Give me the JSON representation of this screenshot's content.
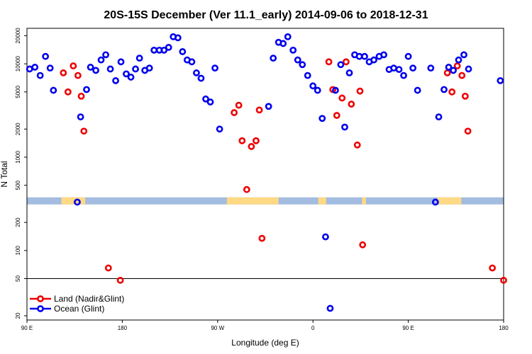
{
  "chart_data": {
    "type": "scatter",
    "title": "20S-15S December (Ver 11.1_early)   2014-09-06 to 2018-12-31",
    "xlabel": "Longitude (deg E)",
    "ylabel": "N Total",
    "xlim": [
      90,
      450
    ],
    "ylim": [
      18,
      24000
    ],
    "y_scale": "log",
    "x_ticks": [
      {
        "value": 90,
        "label": "90 E"
      },
      {
        "value": 162,
        "label": "180"
      },
      {
        "value": 234,
        "label": "90 W"
      },
      {
        "value": 306,
        "label": "0"
      },
      {
        "value": 378,
        "label": "90 E"
      },
      {
        "value": 450,
        "label": "180"
      }
    ],
    "y_ticks": [
      {
        "value": 20,
        "label": "20"
      },
      {
        "value": 50,
        "label": "50"
      },
      {
        "value": 100,
        "label": "100"
      },
      {
        "value": 200,
        "label": "200"
      },
      {
        "value": 500,
        "label": "500"
      },
      {
        "value": 1000,
        "label": "1000"
      },
      {
        "value": 2000,
        "label": "2000"
      },
      {
        "value": 5000,
        "label": "5000"
      },
      {
        "value": 10000,
        "label": "10000"
      },
      {
        "value": 20000,
        "label": "20000"
      }
    ],
    "reference_line_y": 50,
    "land_mask": {
      "y": 340,
      "ocean_color": "#a3bce0",
      "land_color": "#ffd983",
      "land_ranges": [
        [
          116,
          134
        ],
        [
          241,
          280
        ],
        [
          310,
          316
        ],
        [
          343,
          346
        ],
        [
          400,
          418
        ]
      ]
    },
    "legend": {
      "position": "bottom-left"
    },
    "series": [
      {
        "name": "Land (Nadir&Glint)",
        "color": "#ee0000",
        "points": [
          [
            117.5,
            8000
          ],
          [
            121,
            5000
          ],
          [
            125,
            9500
          ],
          [
            128.5,
            7500
          ],
          [
            131,
            4500
          ],
          [
            133,
            1900
          ],
          [
            151.5,
            65
          ],
          [
            160.5,
            48
          ],
          [
            246.5,
            3000
          ],
          [
            250,
            3600
          ],
          [
            252.5,
            1500
          ],
          [
            256,
            450
          ],
          [
            259.5,
            1300
          ],
          [
            263,
            1500
          ],
          [
            265.5,
            3200
          ],
          [
            267.5,
            135
          ],
          [
            318,
            10500
          ],
          [
            321,
            5300
          ],
          [
            324,
            2800
          ],
          [
            328,
            4300
          ],
          [
            331,
            10500
          ],
          [
            335,
            3700
          ],
          [
            339.5,
            1350
          ],
          [
            341.5,
            5100
          ],
          [
            343.5,
            115
          ],
          [
            407.5,
            8000
          ],
          [
            411,
            5000
          ],
          [
            415,
            9500
          ],
          [
            418.5,
            7500
          ],
          [
            421,
            4500
          ],
          [
            423,
            1900
          ],
          [
            441.5,
            65
          ],
          [
            450,
            48
          ]
        ]
      },
      {
        "name": "Ocean (Glint)",
        "color": "#0000ee",
        "points": [
          [
            92,
            8800
          ],
          [
            96,
            9200
          ],
          [
            100,
            7500
          ],
          [
            104,
            12000
          ],
          [
            107.5,
            9000
          ],
          [
            110,
            5200
          ],
          [
            128,
            330
          ],
          [
            130.5,
            2700
          ],
          [
            135,
            5300
          ],
          [
            138,
            9200
          ],
          [
            142,
            8500
          ],
          [
            146,
            11000
          ],
          [
            149.5,
            12500
          ],
          [
            153,
            8800
          ],
          [
            157,
            6600
          ],
          [
            161,
            10500
          ],
          [
            165,
            7800
          ],
          [
            168.5,
            7200
          ],
          [
            172,
            8800
          ],
          [
            175,
            11500
          ],
          [
            179,
            8500
          ],
          [
            182.5,
            9000
          ],
          [
            186,
            14000
          ],
          [
            190,
            14000
          ],
          [
            193.5,
            14000
          ],
          [
            197,
            15000
          ],
          [
            200.5,
            19500
          ],
          [
            204,
            19000
          ],
          [
            207.5,
            13500
          ],
          [
            211,
            11000
          ],
          [
            214.5,
            10500
          ],
          [
            218,
            8000
          ],
          [
            221.5,
            7000
          ],
          [
            225,
            4200
          ],
          [
            228.5,
            3900
          ],
          [
            232,
            9000
          ],
          [
            235.5,
            2000
          ],
          [
            272.5,
            3500
          ],
          [
            276,
            11500
          ],
          [
            280,
            17000
          ],
          [
            283.5,
            16500
          ],
          [
            287,
            19500
          ],
          [
            291,
            14000
          ],
          [
            294.5,
            11000
          ],
          [
            298,
            9800
          ],
          [
            302,
            7500
          ],
          [
            306,
            5800
          ],
          [
            309.5,
            5200
          ],
          [
            313,
            2600
          ],
          [
            315.5,
            140
          ],
          [
            319,
            24
          ],
          [
            323,
            5200
          ],
          [
            327,
            9800
          ],
          [
            330,
            2100
          ],
          [
            333.5,
            8000
          ],
          [
            337.5,
            12500
          ],
          [
            341,
            12000
          ],
          [
            345,
            12000
          ],
          [
            348.5,
            10500
          ],
          [
            352,
            11000
          ],
          [
            356,
            12000
          ],
          [
            359.5,
            12500
          ],
          [
            363.5,
            8700
          ],
          [
            367,
            9000
          ],
          [
            371,
            8700
          ],
          [
            374.5,
            7500
          ],
          [
            378,
            12000
          ],
          [
            381.5,
            9000
          ],
          [
            385,
            5200
          ],
          [
            395,
            9000
          ],
          [
            398.5,
            330
          ],
          [
            401,
            2700
          ],
          [
            405,
            5300
          ],
          [
            408.5,
            9200
          ],
          [
            412,
            8500
          ],
          [
            416,
            11000
          ],
          [
            420,
            12500
          ],
          [
            423.5,
            8800
          ],
          [
            447.5,
            6600
          ]
        ]
      }
    ]
  }
}
